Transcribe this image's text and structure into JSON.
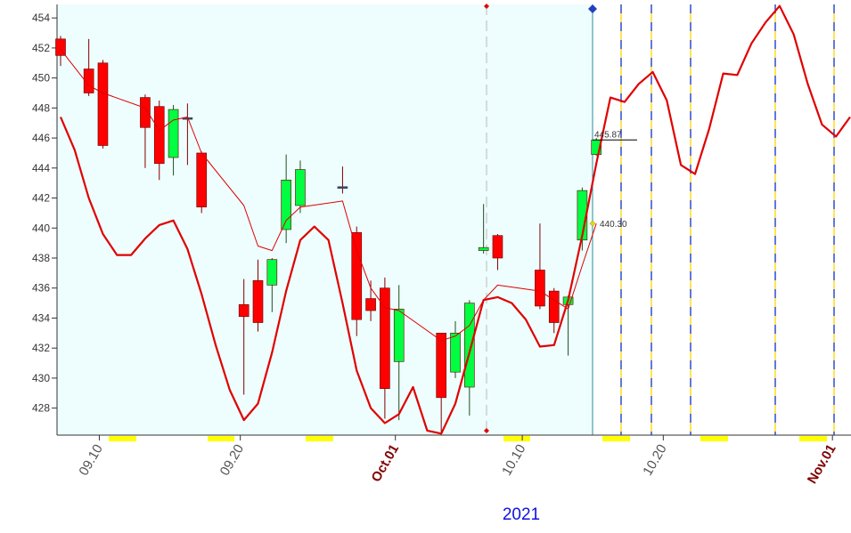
{
  "chart_data": {
    "type": "candlestick",
    "x_label": "2021",
    "ylim": [
      426.2,
      454.9
    ],
    "yticks": [
      428,
      430,
      432,
      434,
      436,
      438,
      440,
      442,
      444,
      446,
      448,
      450,
      452,
      454
    ],
    "xlim": [
      "09.07",
      "11.02"
    ],
    "xticks": [
      "09.10",
      "09.20",
      {
        "value": "10.01",
        "label": "Oct.01"
      },
      "10.10",
      "10.20",
      {
        "value": "11.01",
        "label": "Nov.01"
      }
    ],
    "up_color": "#00ff40",
    "down_color": "#ff0000",
    "candles": {
      "x": [
        "09.07",
        "09.09",
        "09.10",
        "09.13",
        "09.14",
        "09.15",
        "09.16",
        "09.17",
        "09.20",
        "09.21",
        "09.22",
        "09.23",
        "09.24",
        "09.27",
        "09.28",
        "09.29",
        "09.30",
        "10.01",
        "10.04",
        "10.05",
        "10.06",
        "10.07",
        "10.08",
        "10.11",
        "10.12",
        "10.13",
        "10.14",
        "10.15"
      ],
      "open": [
        452.6,
        450.6,
        451.0,
        448.7,
        448.1,
        444.7,
        447.3,
        445.0,
        434.9,
        436.5,
        436.2,
        439.9,
        441.5,
        442.7,
        439.7,
        435.3,
        436.0,
        431.1,
        433.0,
        430.4,
        429.4,
        438.5,
        439.5,
        437.2,
        435.8,
        434.9,
        439.2,
        444.9
      ],
      "high": [
        452.8,
        452.6,
        451.2,
        448.9,
        448.5,
        448.2,
        448.3,
        445.1,
        436.6,
        437.9,
        438.0,
        444.9,
        444.5,
        444.1,
        440.1,
        436.5,
        436.7,
        436.2,
        433.0,
        433.8,
        435.2,
        441.6,
        439.6,
        440.3,
        436.0,
        435.5,
        442.7,
        446.0
      ],
      "low": [
        450.8,
        448.8,
        445.3,
        444.0,
        443.2,
        443.5,
        444.2,
        441.0,
        428.9,
        433.1,
        434.4,
        439.0,
        441.0,
        442.3,
        432.8,
        433.8,
        427.3,
        427.2,
        426.3,
        430.0,
        427.5,
        438.3,
        437.2,
        434.6,
        433.0,
        431.5,
        438.5,
        444.8
      ],
      "close": [
        451.5,
        449.0,
        445.5,
        446.7,
        444.3,
        447.9,
        447.3,
        441.4,
        434.1,
        433.7,
        437.9,
        443.2,
        443.9,
        442.7,
        433.9,
        434.5,
        429.3,
        434.6,
        428.7,
        433.0,
        435.0,
        438.7,
        438.0,
        434.8,
        433.7,
        435.4,
        442.5,
        445.87
      ]
    },
    "lines": [
      {
        "color": "#e00000",
        "width": 1,
        "x": [
          "09.07",
          "09.09",
          "09.10",
          "09.13",
          "09.14",
          "09.15",
          "09.16",
          "09.17",
          "09.20",
          "09.21",
          "09.22",
          "09.23",
          "09.24",
          "09.27",
          "09.28",
          "09.29",
          "09.30",
          "10.01",
          "10.04",
          "10.05",
          "10.06",
          "10.07",
          "10.08",
          "10.11",
          "10.12",
          "10.13",
          "10.14",
          "10.15"
        ],
        "values": [
          451.9,
          449.5,
          449.0,
          448.0,
          446.5,
          447.2,
          447.4,
          445.0,
          441.5,
          438.8,
          438.5,
          440.5,
          441.4,
          441.8,
          438.5,
          436.0,
          434.7,
          434.5,
          432.5,
          432.8,
          433.5,
          435.2,
          436.2,
          435.8,
          435.2,
          434.6,
          437.5,
          440.3
        ]
      },
      {
        "color": "#e00000",
        "width": 2.2,
        "x": [
          "09.07",
          "09.08",
          "09.09",
          "09.10",
          "09.11",
          "09.12",
          "09.13",
          "09.14",
          "09.15",
          "09.16",
          "09.17",
          "09.18",
          "09.19",
          "09.20",
          "09.21",
          "09.22",
          "09.23",
          "09.24",
          "09.25",
          "09.26",
          "09.27",
          "09.28",
          "09.29",
          "09.30",
          "10.01",
          "10.02",
          "10.03",
          "10.04",
          "10.05",
          "10.06",
          "10.07",
          "10.08",
          "10.09",
          "10.10",
          "10.11",
          "10.12",
          "10.13",
          "10.14",
          "10.15",
          "10.16",
          "10.17",
          "10.18",
          "10.19",
          "10.20",
          "10.21",
          "10.22",
          "10.23",
          "10.24",
          "10.25",
          "10.26",
          "10.27",
          "10.28",
          "10.29",
          "10.30",
          "10.31",
          "11.01",
          "11.02"
        ],
        "values": [
          447.4,
          445.2,
          442.0,
          439.6,
          438.2,
          438.2,
          439.3,
          440.2,
          440.5,
          438.6,
          435.6,
          432.2,
          429.2,
          427.2,
          428.3,
          431.7,
          435.8,
          439.2,
          440.1,
          439.2,
          435.0,
          430.5,
          428.0,
          427.0,
          427.6,
          429.4,
          426.5,
          426.3,
          428.3,
          431.7,
          435.2,
          435.4,
          435.0,
          433.9,
          432.1,
          432.2,
          435.2,
          439.5,
          444.3,
          448.7,
          448.4,
          449.6,
          450.4,
          448.5,
          444.2,
          443.6,
          446.6,
          450.3,
          450.2,
          452.3,
          453.7,
          454.8,
          452.9,
          449.6,
          446.9,
          446.1,
          447.4
        ]
      }
    ],
    "annotations": [
      {
        "text": "445.87",
        "value": 445.87
      },
      {
        "text": "440.30",
        "value": 440.3
      }
    ]
  }
}
